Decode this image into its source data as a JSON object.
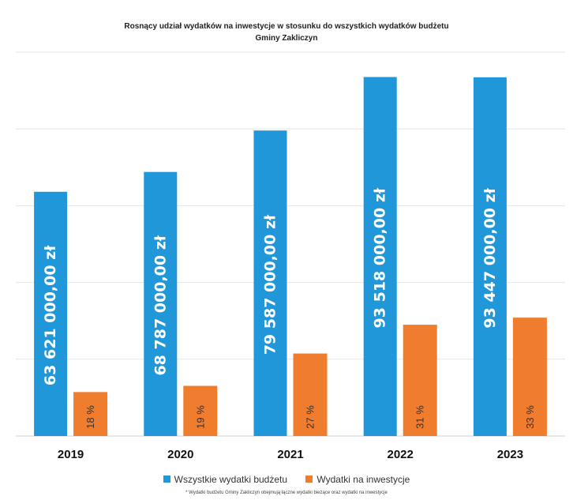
{
  "chart_data": {
    "type": "bar",
    "title": "Rosnący udział wydatków na inwestycje w stosunku do wszystkich wydatków budżetu",
    "subtitle": "Gminy Zakliczyn",
    "categories": [
      "2019",
      "2020",
      "2021",
      "2022",
      "2023"
    ],
    "series": [
      {
        "name": "Wszystkie wydatki budżetu",
        "values": [
          63621000,
          68787000,
          79587000,
          93518000,
          93447000
        ],
        "labels": [
          "63 621 000,00 zł",
          "68 787 000,00 zł",
          "79 587 000,00 zł",
          "93 518 000,00 zł",
          "93 447 000,00 zł"
        ],
        "color": "#1f97d9"
      },
      {
        "name": "Wydatki na inwestycje",
        "values": [
          11451780,
          13069530,
          21488490,
          28990580,
          30837510
        ],
        "labels": [
          "18 %",
          "19 %",
          "27 %",
          "31 %",
          "33 %"
        ],
        "color": "#f07c2e"
      }
    ],
    "ylim": [
      0,
      100000000
    ],
    "grid": true,
    "legend": "bottom",
    "footnote": "* Wydatki budżetu Gminy Zakliczyn obejmują łączne wydatki bieżące oraz wydatki na inwestycje"
  }
}
